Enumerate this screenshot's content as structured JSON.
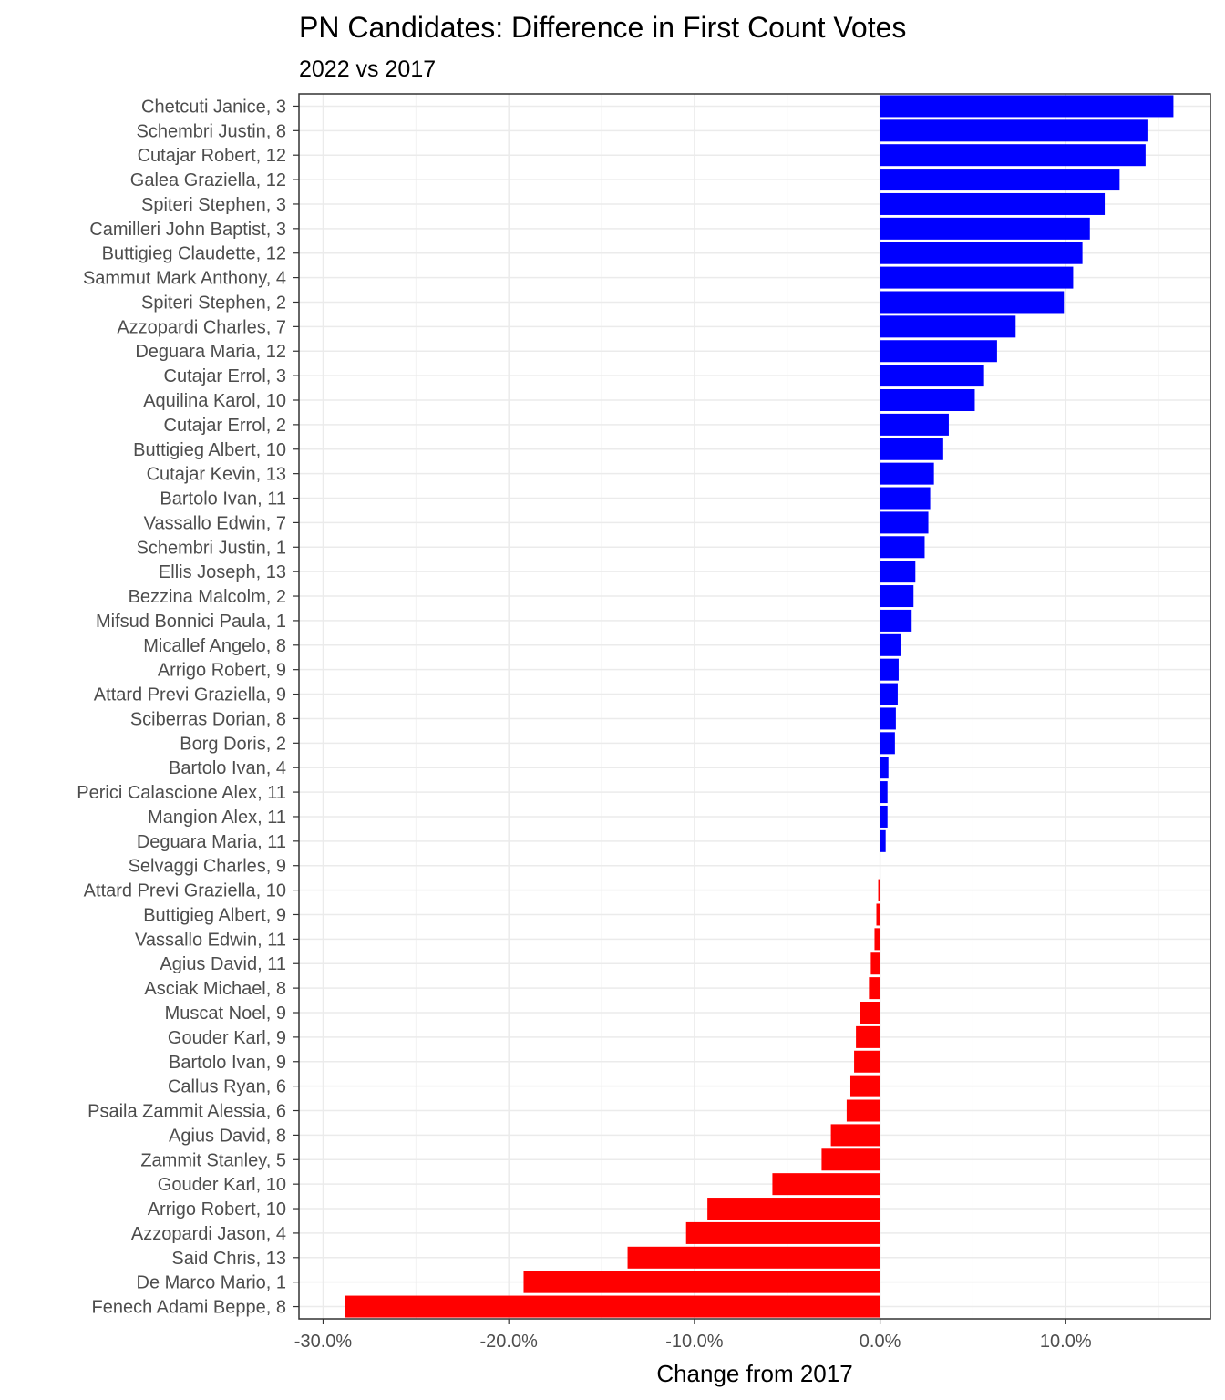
{
  "chart_data": {
    "type": "bar",
    "orientation": "horizontal",
    "title": "PN Candidates: Difference in First Count Votes",
    "subtitle": "2022 vs 2017",
    "xlabel": "Change from 2017",
    "ylabel": "",
    "xlim": [
      -0.3,
      0.16
    ],
    "xticks": [
      -0.3,
      -0.2,
      -0.1,
      0.0,
      0.1
    ],
    "xtick_labels": [
      "-30.0%",
      "-20.0%",
      "-10.0%",
      "0.0%",
      "10.0%"
    ],
    "grid": true,
    "legend": "none",
    "colors": {
      "positive": "#0000ff",
      "negative": "#ff0000",
      "panel_border": "#333333",
      "grid": "#ebebeb"
    },
    "categories": [
      "Chetcuti Janice, 3",
      "Schembri Justin, 8",
      "Cutajar Robert, 12",
      "Galea Graziella, 12",
      "Spiteri Stephen, 3",
      "Camilleri John Baptist, 3",
      "Buttigieg Claudette, 12",
      "Sammut Mark Anthony, 4",
      "Spiteri Stephen, 2",
      "Azzopardi Charles, 7",
      "Deguara Maria, 12",
      "Cutajar Errol, 3",
      "Aquilina Karol, 10",
      "Cutajar Errol, 2",
      "Buttigieg Albert, 10",
      "Cutajar Kevin, 13",
      "Bartolo Ivan, 11",
      "Vassallo Edwin, 7",
      "Schembri Justin, 1",
      "Ellis Joseph, 13",
      "Bezzina Malcolm, 2",
      "Mifsud Bonnici Paula, 1",
      "Micallef Angelo, 8",
      "Arrigo Robert, 9",
      "Attard Previ Graziella, 9",
      "Sciberras Dorian, 8",
      "Borg Doris, 2",
      "Bartolo Ivan, 4",
      "Perici Calascione Alex, 11",
      "Mangion Alex, 11",
      "Deguara Maria, 11",
      "Selvaggi Charles, 9",
      "Attard Previ Graziella, 10",
      "Buttigieg Albert, 9",
      "Vassallo Edwin, 11",
      "Agius David, 11",
      "Asciak Michael, 8",
      "Muscat Noel, 9",
      "Gouder Karl, 9",
      "Bartolo Ivan, 9",
      "Callus Ryan, 6",
      "Psaila Zammit Alessia, 6",
      "Agius David, 8",
      "Zammit Stanley, 5",
      "Gouder Karl, 10",
      "Arrigo Robert, 10",
      "Azzopardi Jason, 4",
      "Said Chris, 13",
      "De Marco Mario, 1",
      "Fenech Adami Beppe, 8"
    ],
    "values": [
      0.158,
      0.144,
      0.143,
      0.129,
      0.121,
      0.113,
      0.109,
      0.104,
      0.099,
      0.073,
      0.063,
      0.056,
      0.051,
      0.037,
      0.034,
      0.029,
      0.027,
      0.026,
      0.024,
      0.019,
      0.018,
      0.017,
      0.011,
      0.01,
      0.0095,
      0.0085,
      0.008,
      0.0045,
      0.004,
      0.004,
      0.003,
      0.0,
      -0.001,
      -0.002,
      -0.003,
      -0.005,
      -0.006,
      -0.011,
      -0.013,
      -0.014,
      -0.016,
      -0.018,
      -0.0265,
      -0.0315,
      -0.058,
      -0.093,
      -0.1045,
      -0.136,
      -0.192,
      -0.288
    ]
  }
}
